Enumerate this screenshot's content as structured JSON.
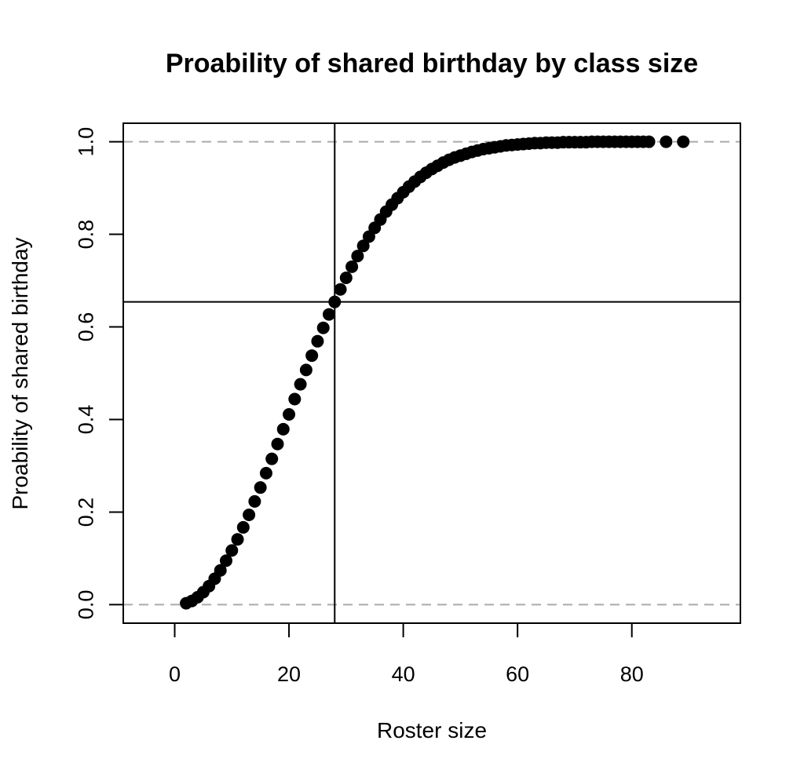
{
  "chart_data": {
    "type": "scatter",
    "title": "Proability of shared birthday by class size",
    "xlabel": "Roster size",
    "ylabel": "Proability of shared birthday",
    "xlim": [
      -9,
      99
    ],
    "ylim": [
      -0.04,
      1.04
    ],
    "x_ticks": [
      0,
      20,
      40,
      60,
      80
    ],
    "x_tick_labels": [
      "0",
      "20",
      "40",
      "60",
      "80"
    ],
    "y_ticks": [
      0.0,
      0.2,
      0.4,
      0.6,
      0.8,
      1.0
    ],
    "y_tick_labels": [
      "0.0",
      "0.2",
      "0.4",
      "0.6",
      "0.8",
      "1.0"
    ],
    "reference_lines": {
      "horizontal_dashed": [
        0.0,
        1.0
      ],
      "vertical_solid": 28,
      "horizontal_solid": 0.654
    },
    "grid": false,
    "legend": "none",
    "colors": {
      "points": "#000000",
      "dashed": "#aaaaaa",
      "frame": "#000000"
    },
    "x": [
      2,
      3,
      4,
      5,
      6,
      7,
      8,
      9,
      10,
      11,
      12,
      13,
      14,
      15,
      16,
      17,
      18,
      19,
      20,
      21,
      22,
      23,
      24,
      25,
      26,
      27,
      28,
      29,
      30,
      31,
      32,
      33,
      34,
      35,
      36,
      37,
      38,
      39,
      40,
      41,
      42,
      43,
      44,
      45,
      46,
      47,
      48,
      49,
      50,
      51,
      52,
      53,
      54,
      55,
      56,
      57,
      58,
      59,
      60,
      61,
      62,
      63,
      64,
      65,
      66,
      67,
      68,
      69,
      70,
      71,
      72,
      73,
      74,
      75,
      76,
      77,
      78,
      79,
      80,
      81,
      82,
      83,
      86,
      89
    ],
    "y": [
      0.003,
      0.008,
      0.016,
      0.027,
      0.04,
      0.056,
      0.074,
      0.095,
      0.117,
      0.141,
      0.167,
      0.194,
      0.223,
      0.253,
      0.284,
      0.315,
      0.347,
      0.379,
      0.411,
      0.444,
      0.476,
      0.507,
      0.538,
      0.569,
      0.598,
      0.627,
      0.654,
      0.681,
      0.706,
      0.73,
      0.753,
      0.775,
      0.795,
      0.814,
      0.832,
      0.849,
      0.864,
      0.878,
      0.891,
      0.903,
      0.914,
      0.924,
      0.933,
      0.941,
      0.948,
      0.955,
      0.961,
      0.966,
      0.97,
      0.974,
      0.978,
      0.981,
      0.984,
      0.986,
      0.988,
      0.99,
      0.992,
      0.993,
      0.994,
      0.995,
      0.996,
      0.997,
      0.997,
      0.998,
      0.998,
      0.998,
      0.999,
      0.999,
      0.999,
      0.999,
      0.999,
      1.0,
      1.0,
      1.0,
      1.0,
      1.0,
      1.0,
      1.0,
      1.0,
      1.0,
      1.0,
      1.0,
      1.0,
      1.0
    ]
  }
}
